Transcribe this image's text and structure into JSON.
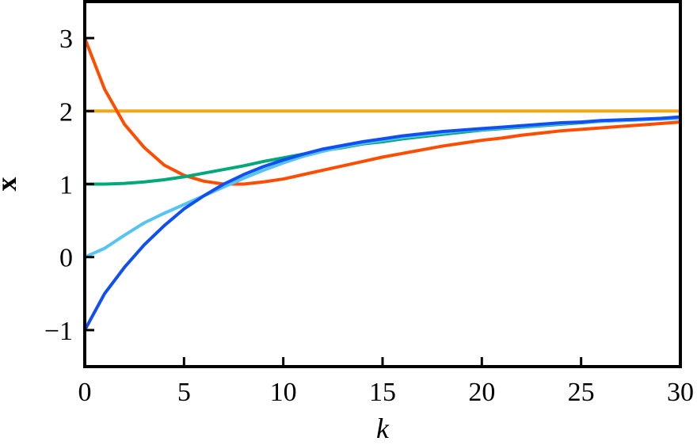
{
  "chart_data": {
    "type": "line",
    "title": "",
    "xlabel": "k",
    "ylabel": "x",
    "xlim": [
      0,
      30
    ],
    "ylim": [
      -1.5,
      3.5
    ],
    "x_ticks": [
      0,
      5,
      10,
      15,
      20,
      25,
      30
    ],
    "y_ticks": [
      -1,
      0,
      1,
      2,
      3
    ],
    "x_tick_labels": [
      "0",
      "5",
      "10",
      "15",
      "20",
      "25",
      "30"
    ],
    "y_tick_labels": [
      "−1",
      "0",
      "1",
      "2",
      "3"
    ],
    "grid": false,
    "legend": "none",
    "x": [
      0,
      1,
      2,
      3,
      4,
      5,
      6,
      7,
      8,
      9,
      10,
      11,
      12,
      13,
      14,
      15,
      16,
      17,
      18,
      19,
      20,
      21,
      22,
      23,
      24,
      25,
      26,
      27,
      28,
      29,
      30
    ],
    "series": [
      {
        "color": "#f0a818",
        "values": [
          2,
          2,
          2,
          2,
          2,
          2,
          2,
          2,
          2,
          2,
          2,
          2,
          2,
          2,
          2,
          2,
          2,
          2,
          2,
          2,
          2,
          2,
          2,
          2,
          2,
          2,
          2,
          2,
          2,
          2,
          2
        ]
      },
      {
        "color": "#ff4d00",
        "values": [
          3.0,
          2.3,
          1.82,
          1.5,
          1.26,
          1.12,
          1.04,
          1.0,
          1.0,
          1.03,
          1.07,
          1.13,
          1.19,
          1.25,
          1.31,
          1.37,
          1.42,
          1.47,
          1.52,
          1.56,
          1.6,
          1.63,
          1.67,
          1.7,
          1.73,
          1.75,
          1.77,
          1.79,
          1.81,
          1.83,
          1.85
        ]
      },
      {
        "color": "#00a87a",
        "values": [
          1.0,
          1.0,
          1.01,
          1.03,
          1.06,
          1.1,
          1.15,
          1.2,
          1.25,
          1.31,
          1.36,
          1.41,
          1.46,
          1.5,
          1.55,
          1.58,
          1.62,
          1.65,
          1.68,
          1.71,
          1.74,
          1.76,
          1.78,
          1.8,
          1.82,
          1.84,
          1.86,
          1.87,
          1.88,
          1.9,
          1.91
        ]
      },
      {
        "color": "#55c4f5",
        "values": [
          0.0,
          0.12,
          0.3,
          0.47,
          0.6,
          0.72,
          0.84,
          0.96,
          1.08,
          1.19,
          1.29,
          1.38,
          1.45,
          1.51,
          1.56,
          1.6,
          1.64,
          1.67,
          1.7,
          1.73,
          1.75,
          1.77,
          1.79,
          1.81,
          1.83,
          1.85,
          1.86,
          1.87,
          1.88,
          1.89,
          1.9
        ]
      },
      {
        "color": "#1050f0",
        "values": [
          -1.0,
          -0.5,
          -0.14,
          0.17,
          0.43,
          0.66,
          0.84,
          1.0,
          1.13,
          1.24,
          1.33,
          1.41,
          1.48,
          1.53,
          1.58,
          1.62,
          1.66,
          1.69,
          1.72,
          1.74,
          1.76,
          1.78,
          1.8,
          1.82,
          1.84,
          1.85,
          1.87,
          1.88,
          1.89,
          1.9,
          1.92
        ]
      }
    ]
  }
}
